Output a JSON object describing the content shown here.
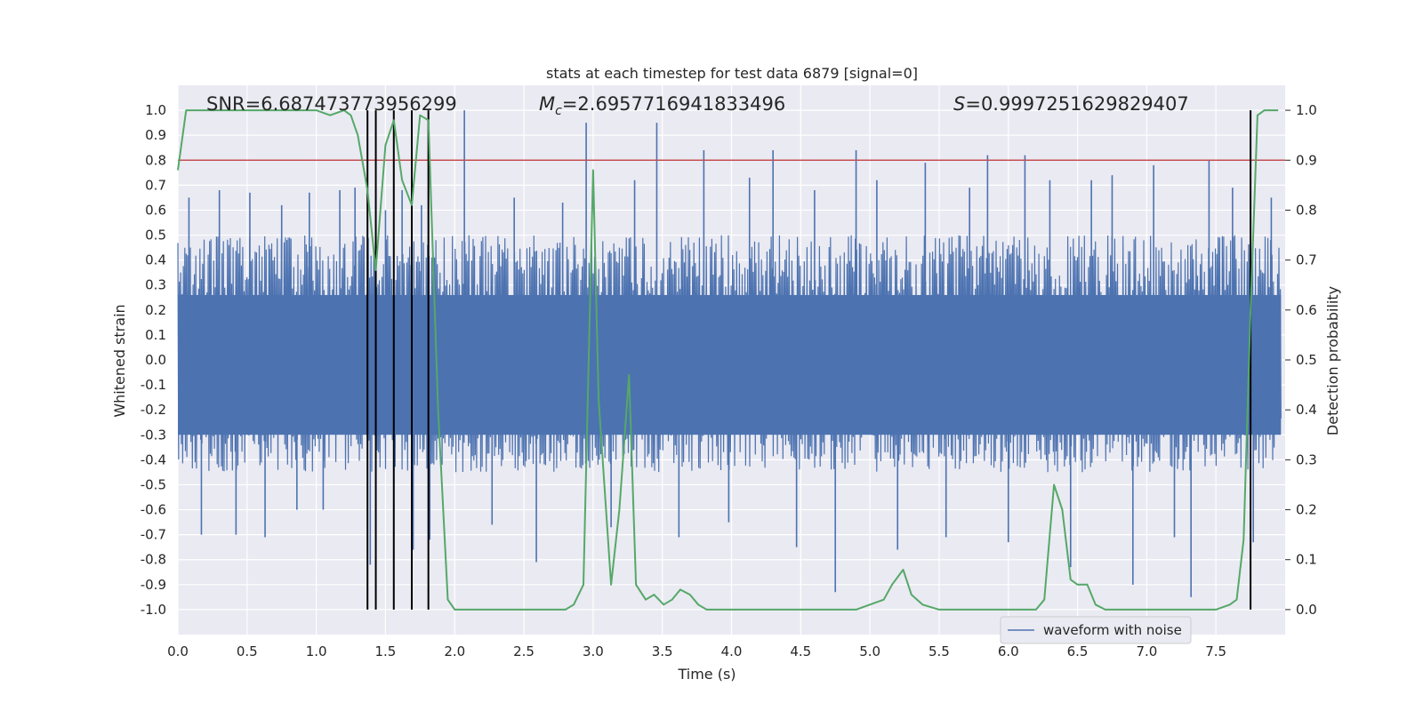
{
  "chart_data": {
    "type": "line",
    "title": "stats at each timestep for test data 6879 [signal=0]",
    "xlabel": "Time (s)",
    "ylabel": "Whitened strain",
    "y2label": "Detection probability",
    "xlim": [
      0.0,
      8.0
    ],
    "ylim": [
      -1.1,
      1.1
    ],
    "y2lim": [
      -0.05,
      1.05
    ],
    "x_ticks": [
      "0.0",
      "0.5",
      "1.0",
      "1.5",
      "2.0",
      "2.5",
      "3.0",
      "3.5",
      "4.0",
      "4.5",
      "5.0",
      "5.5",
      "6.0",
      "6.5",
      "7.0",
      "7.5"
    ],
    "y_ticks": [
      "1.0",
      "0.9",
      "0.8",
      "0.7",
      "0.6",
      "0.5",
      "0.4",
      "0.3",
      "0.2",
      "0.1",
      "0.0",
      "-0.1",
      "-0.2",
      "-0.3",
      "-0.4",
      "-0.5",
      "-0.6",
      "-0.7",
      "-0.8",
      "-0.9",
      "-1.0"
    ],
    "y2_ticks": [
      "1.0",
      "0.9",
      "0.8",
      "0.7",
      "0.6",
      "0.5",
      "0.4",
      "0.3",
      "0.2",
      "0.1",
      "0.0"
    ],
    "grid": true,
    "legend_position": "lower-right",
    "annotations": {
      "snr": "SNR=6.687473773956299",
      "mc_symbol": "M",
      "mc_sub": "c",
      "mc_value": "=2.6957716941833496",
      "s_symbol": "S",
      "s_value": "=0.9997251629829407"
    },
    "threshold": {
      "value": 0.9,
      "axis": "y2",
      "color": "#c44e52"
    },
    "detection_markers_x": [
      1.37,
      1.43,
      1.56,
      1.69,
      1.81,
      7.75
    ],
    "series": [
      {
        "name": "waveform with noise",
        "color": "#4c72b0",
        "axis": "y",
        "kind": "noise-envelope",
        "sample_count": 1600,
        "typical_envelope": [
          -0.45,
          0.5
        ],
        "peaks_x": [
          0.08,
          0.17,
          0.3,
          0.42,
          0.52,
          0.63,
          0.75,
          0.86,
          0.95,
          1.05,
          1.17,
          1.28,
          1.39,
          1.5,
          1.62,
          1.7,
          1.76,
          1.82,
          2.07,
          2.27,
          2.43,
          2.59,
          2.78,
          2.95,
          3.13,
          3.3,
          3.46,
          3.62,
          3.8,
          3.98,
          4.13,
          4.3,
          4.47,
          4.6,
          4.75,
          4.9,
          5.05,
          5.2,
          5.4,
          5.55,
          5.72,
          5.85,
          6.0,
          6.12,
          6.3,
          6.45,
          6.6,
          6.75,
          6.9,
          7.05,
          7.2,
          7.32,
          7.45,
          7.62,
          7.77,
          7.9
        ],
        "peaks_y": [
          0.65,
          -0.7,
          0.68,
          -0.7,
          0.67,
          -0.71,
          0.62,
          -0.6,
          0.67,
          -0.6,
          0.68,
          0.69,
          -0.82,
          0.6,
          0.68,
          -0.76,
          0.62,
          -0.72,
          1.0,
          -0.66,
          0.65,
          -0.81,
          0.63,
          0.95,
          -0.67,
          0.72,
          0.95,
          -0.71,
          0.84,
          -0.65,
          0.73,
          0.84,
          -0.75,
          0.68,
          -0.93,
          0.84,
          0.72,
          -0.76,
          0.79,
          -0.71,
          0.69,
          0.82,
          -0.73,
          0.82,
          0.72,
          -0.83,
          0.72,
          0.74,
          -0.9,
          0.78,
          -0.71,
          -0.95,
          0.8,
          0.69,
          -0.73,
          0.65
        ]
      },
      {
        "name": "",
        "color": "#55a868",
        "axis": "y2",
        "x": [
          0.0,
          0.06,
          0.12,
          0.2,
          0.4,
          0.6,
          0.8,
          1.0,
          1.1,
          1.2,
          1.25,
          1.3,
          1.37,
          1.43,
          1.5,
          1.56,
          1.62,
          1.69,
          1.75,
          1.81,
          1.88,
          1.95,
          2.0,
          2.1,
          2.4,
          2.6,
          2.8,
          2.86,
          2.93,
          3.0,
          3.04,
          3.13,
          3.19,
          3.26,
          3.31,
          3.38,
          3.44,
          3.51,
          3.57,
          3.63,
          3.7,
          3.76,
          3.82,
          3.95,
          4.1,
          4.3,
          4.6,
          4.9,
          5.0,
          5.1,
          5.16,
          5.24,
          5.3,
          5.38,
          5.5,
          5.7,
          5.85,
          6.0,
          6.1,
          6.2,
          6.26,
          6.33,
          6.39,
          6.45,
          6.5,
          6.57,
          6.63,
          6.7,
          6.9,
          7.1,
          7.3,
          7.5,
          7.6,
          7.65,
          7.7,
          7.75,
          7.8,
          7.85,
          7.9,
          7.95
        ],
        "y": [
          0.88,
          1.0,
          1.0,
          1.0,
          1.0,
          1.0,
          1.0,
          1.0,
          0.99,
          1.0,
          0.99,
          0.95,
          0.84,
          0.68,
          0.93,
          0.98,
          0.86,
          0.81,
          0.99,
          0.98,
          0.4,
          0.02,
          0.0,
          0.0,
          0.0,
          0.0,
          0.0,
          0.01,
          0.05,
          0.88,
          0.42,
          0.05,
          0.2,
          0.47,
          0.05,
          0.02,
          0.03,
          0.01,
          0.02,
          0.04,
          0.03,
          0.01,
          0.0,
          0.0,
          0.0,
          0.0,
          0.0,
          0.0,
          0.01,
          0.02,
          0.05,
          0.08,
          0.03,
          0.01,
          0.0,
          0.0,
          0.0,
          0.0,
          0.0,
          0.0,
          0.02,
          0.25,
          0.2,
          0.06,
          0.05,
          0.05,
          0.01,
          0.0,
          0.0,
          0.0,
          0.0,
          0.0,
          0.01,
          0.02,
          0.14,
          0.6,
          0.99,
          1.0,
          1.0,
          1.0
        ]
      }
    ]
  }
}
